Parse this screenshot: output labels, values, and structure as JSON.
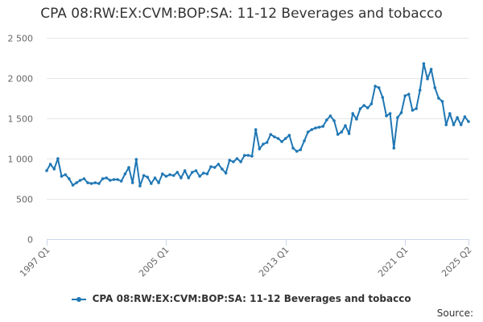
{
  "title": "CPA 08:RW:EX:CVM:BOP:SA: 11-12 Beverages and tobacco",
  "source_label": "Source:",
  "colors": {
    "series": "#1f77b4",
    "grid": "#e6e6e6",
    "axis": "#ccd6eb",
    "text": "#666666"
  },
  "chart_data": {
    "type": "line",
    "title": "CPA 08:RW:EX:CVM:BOP:SA: 11-12 Beverages and tobacco",
    "xlabel": "",
    "ylabel": "",
    "ylim": [
      0,
      2500
    ],
    "yticks": [
      0,
      500,
      1000,
      1500,
      2000,
      2500
    ],
    "ytick_labels": [
      "0",
      "500",
      "1 000",
      "1 500",
      "2 000",
      "2 500"
    ],
    "xticks": [
      "1997 Q1",
      "2005 Q1",
      "2013 Q1",
      "2021 Q1",
      "2025 Q2"
    ],
    "grid": true,
    "legend": "bottom-center",
    "x_start": "1997 Q1",
    "series": [
      {
        "name": "CPA 08:RW:EX:CVM:BOP:SA: 11-12 Beverages and tobacco",
        "values": [
          850,
          930,
          870,
          1000,
          780,
          800,
          750,
          670,
          700,
          730,
          750,
          700,
          690,
          700,
          690,
          750,
          760,
          730,
          740,
          740,
          720,
          810,
          890,
          700,
          990,
          660,
          790,
          770,
          690,
          760,
          700,
          810,
          780,
          800,
          790,
          830,
          760,
          850,
          760,
          830,
          850,
          780,
          820,
          810,
          900,
          890,
          930,
          870,
          820,
          980,
          960,
          1000,
          960,
          1040,
          1040,
          1030,
          1360,
          1120,
          1180,
          1200,
          1300,
          1270,
          1250,
          1210,
          1250,
          1290,
          1130,
          1090,
          1110,
          1220,
          1330,
          1360,
          1380,
          1390,
          1400,
          1480,
          1530,
          1470,
          1300,
          1330,
          1410,
          1310,
          1560,
          1490,
          1620,
          1660,
          1630,
          1680,
          1900,
          1880,
          1760,
          1530,
          1560,
          1130,
          1510,
          1570,
          1780,
          1800,
          1600,
          1620,
          1850,
          2180,
          1990,
          2110,
          1880,
          1750,
          1710,
          1420,
          1560,
          1420,
          1510,
          1420,
          1520,
          1460
        ]
      }
    ]
  }
}
